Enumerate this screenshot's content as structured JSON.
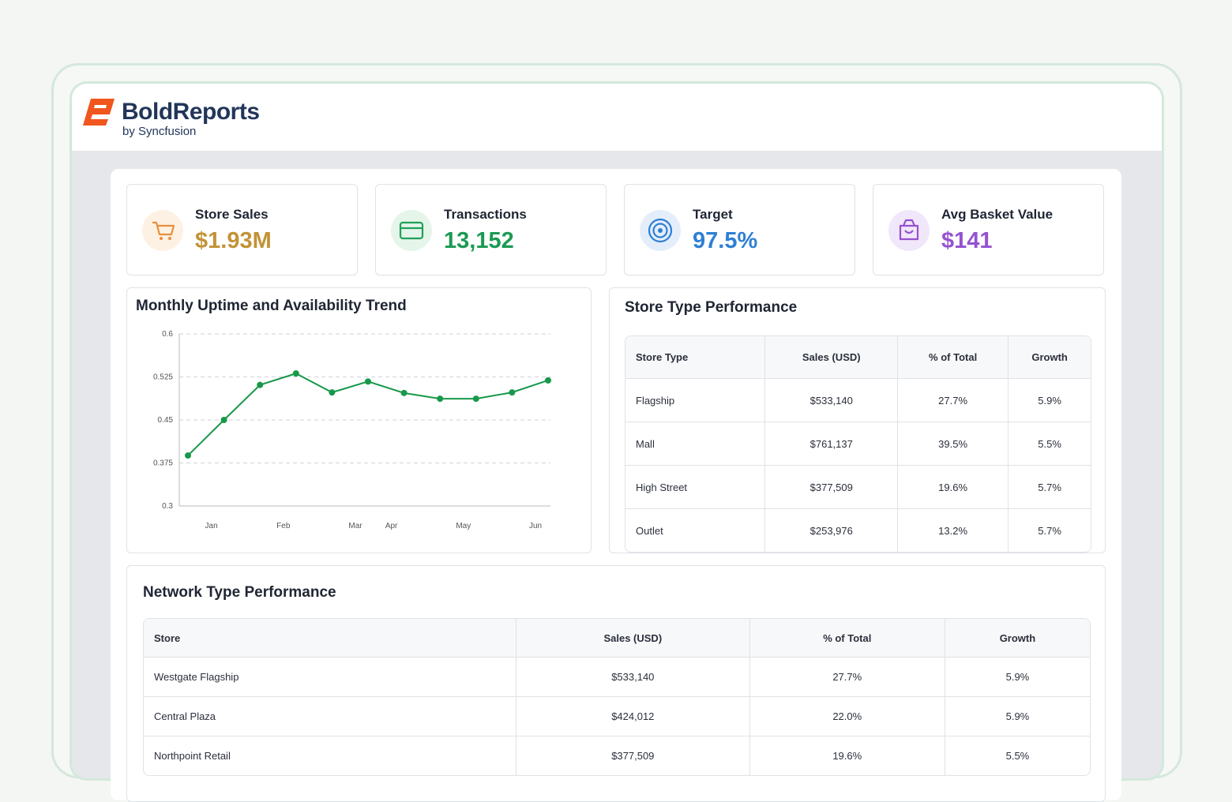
{
  "header": {
    "brand_bold": "Bold",
    "brand_rest": "Reports",
    "byline": "by Syncfusion"
  },
  "kpis": [
    {
      "label": "Store Sales",
      "value": "$1.93M"
    },
    {
      "label": "Transactions",
      "value": "13,152"
    },
    {
      "label": "Target",
      "value": "97.5%"
    },
    {
      "label": "Avg Basket Value",
      "value": "$141"
    }
  ],
  "chart_data": {
    "type": "line",
    "title": "Monthly Uptime and Availability Trend",
    "categories": [
      null,
      "Jan",
      null,
      "Feb",
      null,
      "Mar",
      "Apr",
      null,
      "May",
      null,
      "Jun"
    ],
    "values": [
      0.388,
      0.45,
      0.511,
      0.531,
      0.498,
      0.517,
      0.497,
      0.487,
      0.487,
      0.498,
      0.519
    ],
    "color": "#17984a",
    "ylim": [
      0.3,
      0.6
    ],
    "yticks": [
      0.3,
      0.375,
      0.45,
      0.525,
      0.6
    ],
    "grid": true
  },
  "store_type_table": {
    "title": "Store Type Performance",
    "columns": [
      "Store Type",
      "Sales (USD)",
      "% of Total",
      "Growth"
    ],
    "rows": [
      [
        "Flagship",
        "$533,140",
        "27.7%",
        "5.9%"
      ],
      [
        "Mall",
        "$761,137",
        "39.5%",
        "5.5%"
      ],
      [
        "High Street",
        "$377,509",
        "19.6%",
        "5.7%"
      ],
      [
        "Outlet",
        "$253,976",
        "13.2%",
        "5.7%"
      ]
    ]
  },
  "network_table": {
    "title": "Network Type Performance",
    "columns": [
      "Store",
      "Sales (USD)",
      "% of Total",
      "Growth"
    ],
    "rows": [
      [
        "Westgate Flagship",
        "$533,140",
        "27.7%",
        "5.9%"
      ],
      [
        "Central Plaza",
        "$424,012",
        "22.0%",
        "5.9%"
      ],
      [
        "Northpoint Retail",
        "$377,509",
        "19.6%",
        "5.5%"
      ]
    ]
  }
}
